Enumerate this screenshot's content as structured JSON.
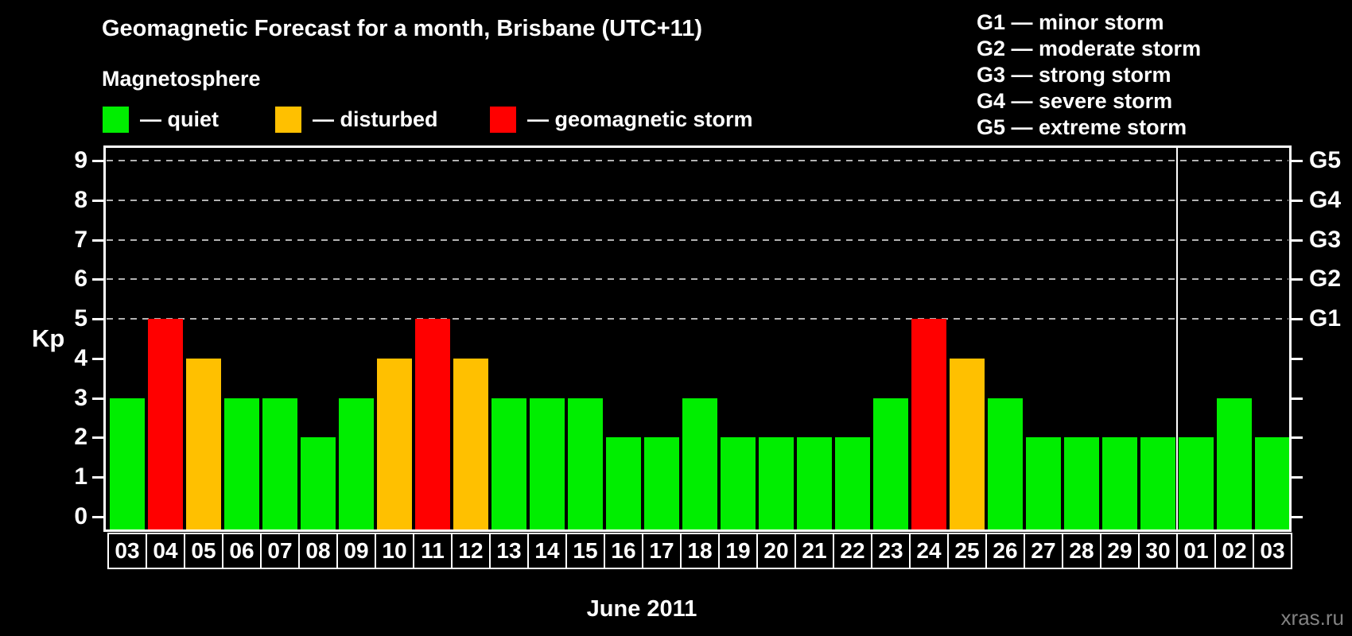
{
  "title": "Geomagnetic Forecast for a month, Brisbane (UTC+11)",
  "subtitle": "Magnetosphere",
  "legend": [
    {
      "key": "quiet",
      "label": "— quiet",
      "color": "#00ee00"
    },
    {
      "key": "disturbed",
      "label": "— disturbed",
      "color": "#ffc000"
    },
    {
      "key": "storm",
      "label": "— geomagnetic storm",
      "color": "#ff0000"
    }
  ],
  "g_legend": [
    "G1 — minor storm",
    "G2 — moderate storm",
    "G3 — strong storm",
    "G4 — severe storm",
    "G5 — extreme storm"
  ],
  "axes": {
    "kp_label": "Kp",
    "y_ticks": [
      "0",
      "1",
      "2",
      "3",
      "4",
      "5",
      "6",
      "7",
      "8",
      "9"
    ],
    "right_axis": [
      {
        "kp": 5,
        "label": "G1"
      },
      {
        "kp": 6,
        "label": "G2"
      },
      {
        "kp": 7,
        "label": "G3"
      },
      {
        "kp": 8,
        "label": "G4"
      },
      {
        "kp": 9,
        "label": "G5"
      }
    ]
  },
  "x_axis": {
    "month_label": "June 2011"
  },
  "watermark": "xras.ru",
  "chart_data": {
    "type": "bar",
    "title": "Geomagnetic Forecast for a month, Brisbane (UTC+11)",
    "xlabel": "June 2011",
    "ylabel": "Kp",
    "ylim": [
      0,
      9
    ],
    "grid": "dashed horizontal gridlines at Kp 5,6,7,8,9 (G1–G5)",
    "legend_position": "top",
    "categories": [
      "03",
      "04",
      "05",
      "06",
      "07",
      "08",
      "09",
      "10",
      "11",
      "12",
      "13",
      "14",
      "15",
      "16",
      "17",
      "18",
      "19",
      "20",
      "21",
      "22",
      "23",
      "24",
      "25",
      "26",
      "27",
      "28",
      "29",
      "30",
      "01",
      "02",
      "03"
    ],
    "values": [
      3,
      5,
      4,
      3,
      3,
      2,
      3,
      4,
      5,
      4,
      3,
      3,
      3,
      2,
      2,
      3,
      2,
      2,
      2,
      2,
      3,
      5,
      4,
      3,
      2,
      2,
      2,
      2,
      2,
      3,
      2
    ],
    "status": [
      "quiet",
      "storm",
      "disturbed",
      "quiet",
      "quiet",
      "quiet",
      "quiet",
      "disturbed",
      "storm",
      "disturbed",
      "quiet",
      "quiet",
      "quiet",
      "quiet",
      "quiet",
      "quiet",
      "quiet",
      "quiet",
      "quiet",
      "quiet",
      "quiet",
      "storm",
      "disturbed",
      "quiet",
      "quiet",
      "quiet",
      "quiet",
      "quiet",
      "quiet",
      "quiet",
      "quiet"
    ],
    "status_colors": {
      "quiet": "#00ee00",
      "disturbed": "#ffc000",
      "storm": "#ff0000"
    },
    "month_separator_after_index": 27,
    "gridlines_at_kp": [
      5,
      6,
      7,
      8,
      9
    ]
  }
}
